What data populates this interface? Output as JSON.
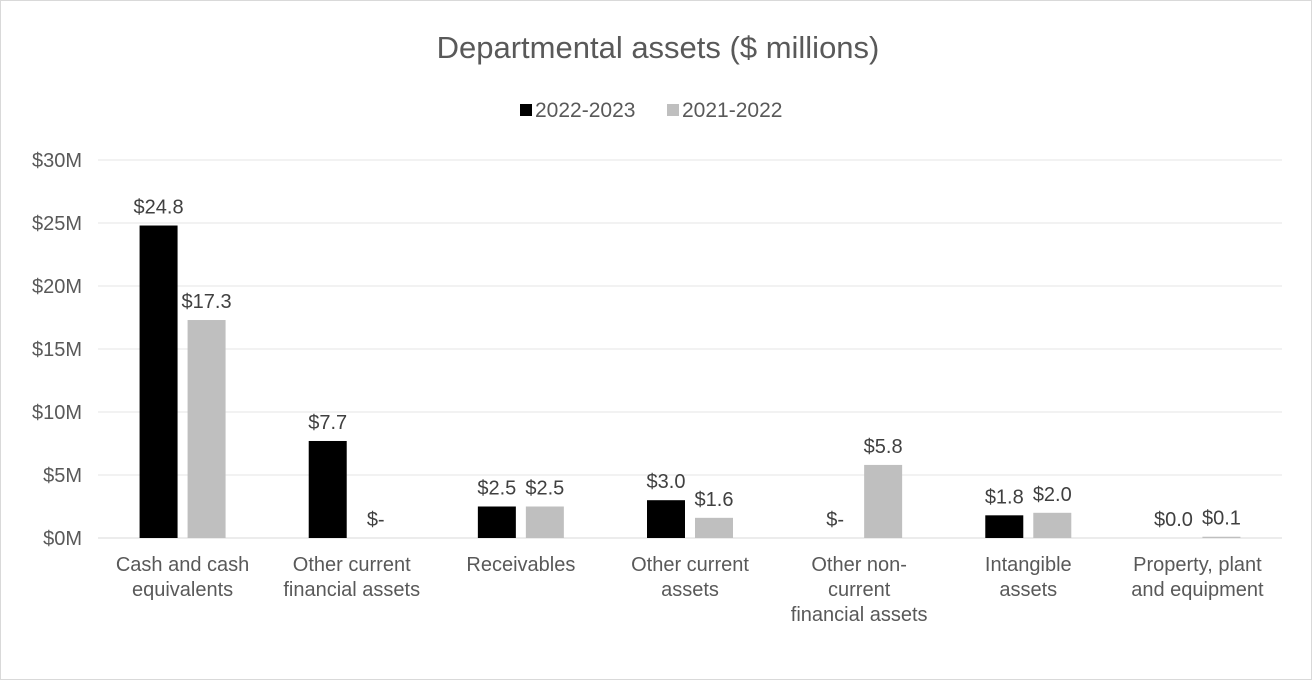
{
  "chart_data": {
    "type": "bar",
    "title": "Departmental assets ($ millions)",
    "xlabel": "",
    "ylabel": "",
    "ylim": [
      0,
      30
    ],
    "yticks": [
      {
        "value": 0,
        "label": "$0M"
      },
      {
        "value": 5,
        "label": "$5M"
      },
      {
        "value": 10,
        "label": "$10M"
      },
      {
        "value": 15,
        "label": "$15M"
      },
      {
        "value": 20,
        "label": "$20M"
      },
      {
        "value": 25,
        "label": "$25M"
      },
      {
        "value": 30,
        "label": "$30M"
      }
    ],
    "grid": true,
    "legend_position": "top",
    "categories": [
      [
        "Cash and cash",
        "equivalents"
      ],
      [
        "Other current",
        "financial assets"
      ],
      [
        "Receivables"
      ],
      [
        "Other current",
        "assets"
      ],
      [
        "Other non-",
        "current",
        "financial assets"
      ],
      [
        "Intangible",
        "assets"
      ],
      [
        "Property, plant",
        "and equipment"
      ]
    ],
    "series": [
      {
        "name": "2022-2023",
        "color": "#000000",
        "values": [
          24.8,
          7.7,
          2.5,
          3.0,
          0,
          1.8,
          0.0
        ],
        "labels": [
          "$24.8",
          "$7.7",
          "$2.5",
          "$3.0",
          "$-",
          "$1.8",
          "$0.0"
        ]
      },
      {
        "name": "2021-2022",
        "color": "#bfbfbf",
        "values": [
          17.3,
          0,
          2.5,
          1.6,
          5.8,
          2.0,
          0.1
        ],
        "labels": [
          "$17.3",
          "$-",
          "$2.5",
          "$1.6",
          "$5.8",
          "$2.0",
          "$0.1"
        ]
      }
    ]
  }
}
